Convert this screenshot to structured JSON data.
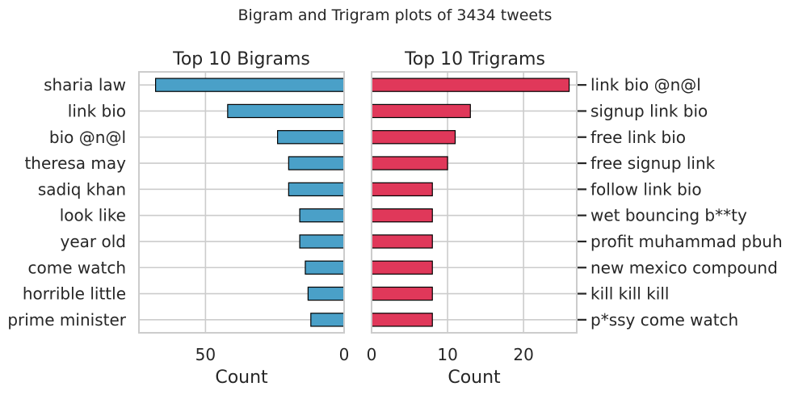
{
  "suptitle": "Bigram and Trigram plots of 3434 tweets",
  "colors": {
    "bigram": "#4aa0c8",
    "trigram": "#e0385a",
    "edge": "#000000"
  },
  "chart_data": [
    {
      "type": "bar",
      "orientation": "horizontal",
      "x_inverted": true,
      "title": "Top 10 Bigrams",
      "xlabel": "Count",
      "ylabel": "",
      "xlim": [
        0,
        74
      ],
      "xticks": [
        50,
        0
      ],
      "grid": true,
      "categories": [
        "sharia law",
        "link bio",
        "bio @n@l",
        "theresa may",
        "sadiq khan",
        "look like",
        "year old",
        "come watch",
        "horrible little",
        "prime minister"
      ],
      "values": [
        68,
        42,
        24,
        20,
        20,
        16,
        16,
        14,
        13,
        12
      ]
    },
    {
      "type": "bar",
      "orientation": "horizontal",
      "title": "Top 10 Trigrams",
      "xlabel": "Count",
      "ylabel": "",
      "xlim": [
        0,
        27
      ],
      "xticks": [
        0,
        10,
        20
      ],
      "grid": true,
      "categories": [
        "link bio @n@l",
        "signup link bio",
        "free link bio",
        "free signup link",
        "follow link bio",
        "wet bouncing b**ty",
        "profit muhammad pbuh",
        "new mexico compound",
        "kill kill kill",
        "p*ssy come watch"
      ],
      "values": [
        26,
        13,
        11,
        10,
        8,
        8,
        8,
        8,
        8,
        8
      ]
    }
  ]
}
